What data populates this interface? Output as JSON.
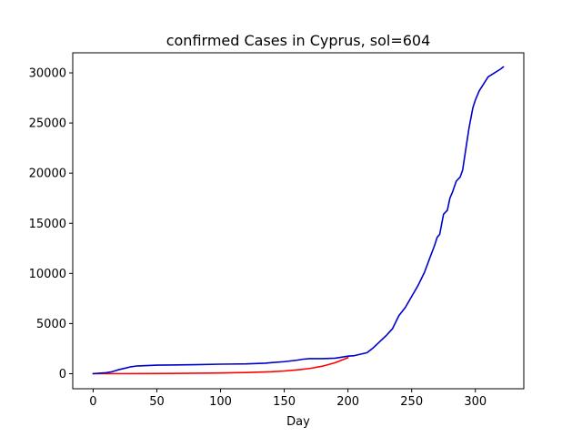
{
  "chart_data": {
    "type": "line",
    "title": "confirmed Cases in Cyprus, sol=604",
    "xlabel": "Day",
    "ylabel": "",
    "xlim": [
      -16,
      338
    ],
    "ylim": [
      -1500,
      32000
    ],
    "xticks": [
      0,
      50,
      100,
      150,
      200,
      250,
      300
    ],
    "yticks": [
      0,
      5000,
      10000,
      15000,
      20000,
      25000,
      30000
    ],
    "xtick_labels": [
      "0",
      "50",
      "100",
      "150",
      "200",
      "250",
      "300"
    ],
    "ytick_labels": [
      "0",
      "5000",
      "10000",
      "15000",
      "20000",
      "25000",
      "30000"
    ],
    "grid": false,
    "legend": "none",
    "series": [
      {
        "color": "#ff0000",
        "x": [
          0,
          20,
          40,
          60,
          80,
          100,
          120,
          140,
          150,
          160,
          170,
          180,
          190,
          200
        ],
        "y": [
          0,
          10,
          15,
          25,
          45,
          75,
          120,
          200,
          270,
          380,
          520,
          750,
          1100,
          1600
        ]
      },
      {
        "color": "#0000cd",
        "x": [
          0,
          10,
          15,
          20,
          25,
          30,
          35,
          40,
          50,
          60,
          80,
          100,
          120,
          135,
          140,
          150,
          160,
          165,
          170,
          180,
          190,
          200,
          205,
          210,
          215,
          220,
          225,
          230,
          235,
          240,
          245,
          250,
          255,
          260,
          265,
          268,
          270,
          272,
          275,
          278,
          280,
          282,
          285,
          288,
          290,
          292,
          295,
          298,
          300,
          303,
          305,
          308,
          310,
          315,
          320,
          322
        ],
        "y": [
          0,
          100,
          200,
          400,
          550,
          700,
          780,
          800,
          850,
          870,
          900,
          950,
          980,
          1050,
          1100,
          1200,
          1350,
          1450,
          1500,
          1500,
          1550,
          1750,
          1800,
          1950,
          2100,
          2600,
          3200,
          3800,
          4500,
          5800,
          6600,
          7700,
          8800,
          10100,
          11800,
          12800,
          13600,
          13900,
          15900,
          16300,
          17500,
          18100,
          19200,
          19600,
          20300,
          22000,
          24500,
          26500,
          27300,
          28200,
          28600,
          29200,
          29600,
          30000,
          30400,
          30600
        ]
      }
    ]
  }
}
